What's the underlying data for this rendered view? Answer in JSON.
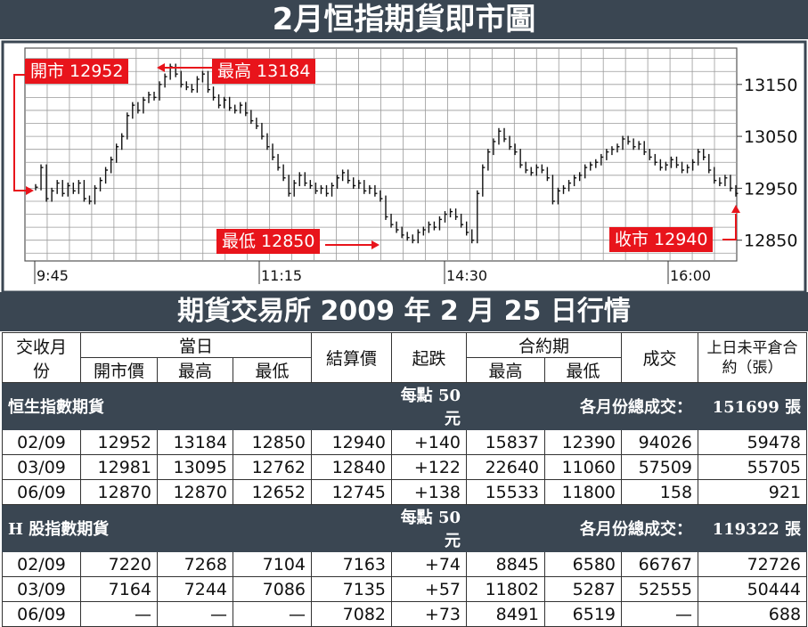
{
  "title": "2月恒指期貨即市圖",
  "table_title": "期貨交易所 2009 年 2 月 25 日行情",
  "chart_data": {
    "type": "line",
    "title": "2月恒指期貨即市圖",
    "x_ticks": [
      "9:45",
      "11:15",
      "14:30",
      "16:00"
    ],
    "y_ticks": [
      13150,
      13050,
      12950,
      12850
    ],
    "ylim": [
      12810,
      13220
    ],
    "grid": true,
    "axis_position": "right",
    "series": [
      {
        "values": [
          12952,
          12990,
          12930,
          12945,
          12960,
          12940,
          12955,
          12945,
          12960,
          12930,
          12925,
          12950,
          12965,
          12985,
          13005,
          13030,
          13050,
          13090,
          13110,
          13100,
          13120,
          13130,
          13125,
          13150,
          13165,
          13184,
          13170,
          13150,
          13145,
          13140,
          13160,
          13170,
          13140,
          13125,
          13110,
          13120,
          13105,
          13100,
          13110,
          13095,
          13080,
          13070,
          13050,
          13030,
          13010,
          12990,
          12970,
          12940,
          12960,
          12975,
          12960,
          12955,
          12945,
          12950,
          12940,
          12955,
          12970,
          12980,
          12965,
          12955,
          12960,
          12945,
          12950,
          12940,
          12930,
          12895,
          12880,
          12870,
          12860,
          12855,
          12850,
          12865,
          12870,
          12880,
          12875,
          12890,
          12900,
          12905,
          12895,
          12880,
          12865,
          12850,
          12940,
          12990,
          13020,
          13040,
          13060,
          13045,
          13030,
          13020,
          12995,
          12985,
          12980,
          12990,
          12985,
          12970,
          12925,
          12945,
          12950,
          12960,
          12970,
          12975,
          12990,
          12995,
          13000,
          13010,
          13020,
          13025,
          13030,
          13045,
          13040,
          13030,
          13035,
          13020,
          13010,
          13000,
          12990,
          12995,
          13005,
          12995,
          12985,
          12990,
          13000,
          13020,
          13010,
          12985,
          12965,
          12960,
          12970,
          12950,
          12940
        ]
      }
    ],
    "annotations": [
      {
        "label": "開市 12952",
        "value": 12952
      },
      {
        "label": "最高 13184",
        "value": 13184
      },
      {
        "label": "最低 12850",
        "value": 12850
      },
      {
        "label": "收市 12940",
        "value": 12940
      }
    ]
  },
  "table": {
    "headers": {
      "month": "交收月份",
      "day": "當日",
      "open": "開市價",
      "high": "最高",
      "low": "最低",
      "settle": "結算價",
      "change": "起跌",
      "contract": "合約期",
      "c_high": "最高",
      "c_low": "最低",
      "volume": "成交",
      "oi": "上日未平倉合約（張）"
    },
    "sections": [
      {
        "name": "恒生指數期貨",
        "unit": "每點 50 元",
        "total_label": "各月份總成交：",
        "total_value": "151699 張",
        "rows": [
          [
            "02/09",
            "12952",
            "13184",
            "12850",
            "12940",
            "+140",
            "15837",
            "12390",
            "94026",
            "59478"
          ],
          [
            "03/09",
            "12981",
            "13095",
            "12762",
            "12840",
            "+122",
            "22640",
            "11060",
            "57509",
            "55705"
          ],
          [
            "06/09",
            "12870",
            "12870",
            "12652",
            "12745",
            "+138",
            "15533",
            "11800",
            "158",
            "921"
          ]
        ]
      },
      {
        "name": "H 股指數期貨",
        "unit": "每點 50 元",
        "total_label": "各月份總成交：",
        "total_value": "119322 張",
        "rows": [
          [
            "02/09",
            "7220",
            "7268",
            "7104",
            "7163",
            "+74",
            "8845",
            "6580",
            "66767",
            "72726"
          ],
          [
            "03/09",
            "7164",
            "7244",
            "7086",
            "7135",
            "+57",
            "11802",
            "5287",
            "52555",
            "50444"
          ],
          [
            "06/09",
            "—",
            "—",
            "—",
            "7082",
            "+73",
            "8491",
            "6519",
            "—",
            "688"
          ]
        ]
      }
    ]
  },
  "colors": {
    "accent": "#e8141b",
    "banner": "#3a4652",
    "grid": "#9a9a9a"
  }
}
